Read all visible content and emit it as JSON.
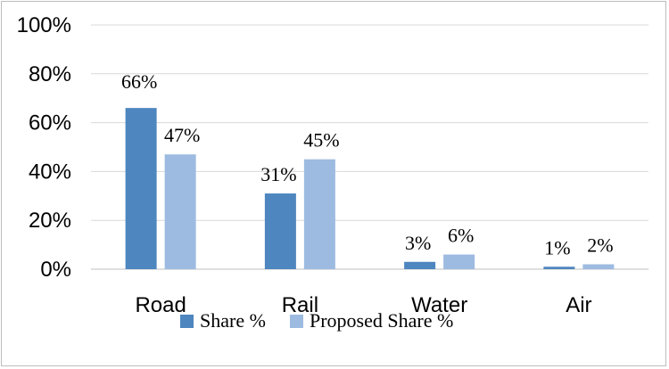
{
  "chart_data": {
    "type": "bar",
    "categories": [
      "Road",
      "Rail",
      "Water",
      "Air"
    ],
    "series": [
      {
        "name": "Share %",
        "values": [
          66,
          31,
          3,
          1
        ],
        "labels": [
          "66%",
          "31%",
          "3%",
          "1%"
        ],
        "color": "#4e86bf"
      },
      {
        "name": "Proposed Share %",
        "values": [
          47,
          45,
          6,
          2
        ],
        "labels": [
          "47%",
          "45%",
          "6%",
          "2%"
        ],
        "color": "#9dbbe1"
      }
    ],
    "ylim": [
      0,
      100
    ],
    "yticks": [
      0,
      20,
      40,
      60,
      80,
      100
    ],
    "ytick_labels": [
      "0%",
      "20%",
      "40%",
      "60%",
      "80%",
      "100%"
    ],
    "grid": true,
    "legend_position": "bottom",
    "title": "",
    "xlabel": "",
    "ylabel": ""
  }
}
